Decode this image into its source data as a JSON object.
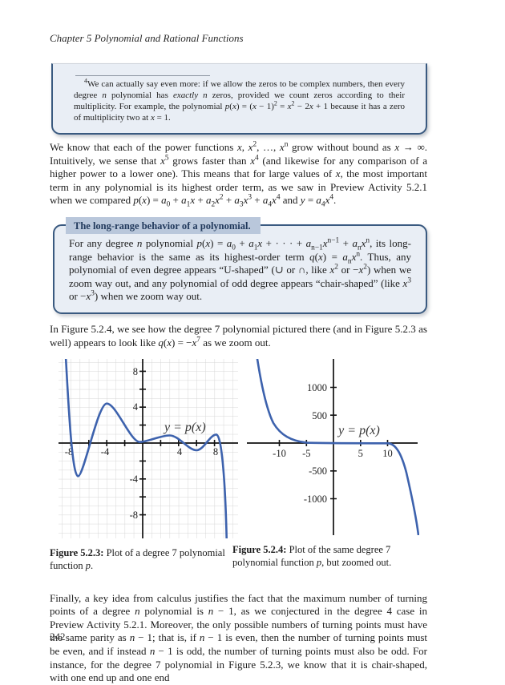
{
  "page": {
    "header": "Chapter 5 Polynomial and Rational Functions",
    "page_number": "242"
  },
  "footnote": {
    "marker": "4",
    "text_html": "We can actually say even more: if we allow the zeros to be complex numbers, then every degree <em>n</em> polynomial has <em>exactly n</em> zeros, provided we count zeros according to their multiplicity. For example, the polynomial <em>p</em>(<em>x</em>) = (<em>x</em> − 1)<sup>2</sup> = <em>x</em><sup>2</sup> − 2<em>x</em> + 1 because it has a zero of multiplicity two at <em>x</em> = 1."
  },
  "para1_html": "We know that each of the power functions <em>x</em>, <em>x</em><sup>2</sup>, …, <em>x</em><sup>n</sup> grow without bound as <em>x</em> → ∞. Intuitively, we sense that <em>x</em><sup>5</sup> grows faster than <em>x</em><sup>4</sup> (and likewise for any comparison of a higher power to a lower one). This means that for large values of <em>x</em>, the most important term in any polynomial is its highest order term, as we saw in Preview Activity 5.2.1 when we compared <em>p</em>(<em>x</em>) = <em>a</em><sub>0</sub> + <em>a</em><sub>1</sub><em>x</em> + <em>a</em><sub>2</sub><em>x</em><sup>2</sup> + <em>a</em><sub>3</sub><em>x</em><sup>3</sup> + <em>a</em><sub>4</sub><em>x</em><sup>4</sup> and <em>y</em> = <em>a</em><sub>4</sub><em>x</em><sup>4</sup>.",
  "behavior_box": {
    "title": "The long-range behavior of a polynomial.",
    "body_html": "For any degree <em>n</em> polynomial <em>p</em>(<em>x</em>) = <em>a</em><sub>0</sub> + <em>a</em><sub>1</sub><em>x</em> + · · · + <em>a</em><sub>n−1</sub><em>x</em><sup>n−1</sup> + <em>a</em><sub>n</sub><em>x</em><sup>n</sup>, its long-range behavior is the same as its highest-order term <em>q</em>(<em>x</em>) = <em>a</em><sub>n</sub><em>x</em><sup>n</sup>. Thus, any polynomial of even degree appears “U-shaped” (∪ or ∩, like <em>x</em><sup>2</sup> or −<em>x</em><sup>2</sup>) when we zoom way out, and any polynomial of odd degree appears “chair-shaped” (like <em>x</em><sup>3</sup> or −<em>x</em><sup>3</sup>) when we zoom way out.",
    "colors": {
      "border": "#3a5a80",
      "background": "#e9eef5",
      "title_background": "#b9c7db"
    }
  },
  "para2_html": "In Figure 5.2.4, we see how the degree 7 polynomial pictured there (and in Figure 5.2.3 as well) appears to look like <em>q</em>(<em>x</em>) = −<em>x</em><sup>7</sup> as we zoom out.",
  "para3_html": "Finally, a key idea from calculus justifies the fact that the maximum number of turning points of a degree <em>n</em> polynomial is <em>n</em> − 1, as we conjectured in the degree 4 case in Preview Activity 5.2.1. Moreover, the only possible numbers of turning points must have the same parity as <em>n</em> − 1; that is, if <em>n</em> − 1 is even, then the number of turning points must be even, and if instead <em>n</em> − 1 is odd, the number of turning points must also be odd. For instance, for the degree 7 polynomial in Figure 5.2.3, we know that it is chair-shaped, with one end up and one end",
  "figures": [
    {
      "caption_label": "Figure 5.2.3:",
      "caption_text_html": " Plot of a degree 7 polynomial function <em>p</em>.",
      "curve_label": "y = p(x)",
      "x_ticks": [
        "-8",
        "-4",
        "4",
        "8"
      ],
      "y_ticks": [
        "8",
        "4",
        "-4",
        "-8"
      ],
      "curve_color": "#3d62ad"
    },
    {
      "caption_label": "Figure 5.2.4:",
      "caption_text_html": " Plot of the same degree 7 polynomial function <em>p</em>, but zoomed out.",
      "curve_label": "y = p(x)",
      "x_ticks": [
        "-10",
        "-5",
        "5",
        "10"
      ],
      "y_ticks": [
        "1000",
        "500",
        "-500",
        "-1000"
      ],
      "curve_color": "#3d62ad"
    }
  ],
  "chart_data": [
    {
      "type": "line",
      "title": "Figure 5.2.3: degree 7 polynomial y = p(x), zoomed in",
      "series": [
        {
          "name": "y = p(x)",
          "points": [
            [
              -8.5,
              10
            ],
            [
              -8.1,
              0
            ],
            [
              -7.2,
              -3.7
            ],
            [
              -6.2,
              0
            ],
            [
              -4,
              4.4
            ],
            [
              -2,
              1.7
            ],
            [
              -0.3,
              0.1
            ],
            [
              0,
              0.2
            ],
            [
              3,
              0.9
            ],
            [
              4.6,
              0.3
            ],
            [
              6,
              -0.8
            ],
            [
              8.2,
              0.95
            ],
            [
              8.85,
              0
            ],
            [
              9.3,
              -10
            ]
          ]
        }
      ],
      "xlim": [
        -9.4,
        10.6
      ],
      "ylim": [
        -10.6,
        9.4
      ],
      "x_tick_labels": [
        -8,
        -4,
        4,
        8
      ],
      "y_tick_labels": [
        8,
        4,
        -4,
        -8
      ],
      "tick_step": 2,
      "grid": true,
      "annotation": "y = p(x)"
    },
    {
      "type": "line",
      "title": "Figure 5.2.4: same degree 7 polynomial, zoomed out (looks like -x^7)",
      "series": [
        {
          "name": "y = p(x)",
          "points": [
            [
              -14,
              1500
            ],
            [
              -11.5,
              400
            ],
            [
              -10,
              150
            ],
            [
              -9,
              40
            ],
            [
              -7.5,
              5
            ],
            [
              0,
              0
            ],
            [
              7.5,
              -5
            ],
            [
              9,
              -40
            ],
            [
              10,
              -150
            ],
            [
              11.5,
              -400
            ],
            [
              14,
              -1500
            ]
          ]
        }
      ],
      "xlim": [
        -16,
        15.5
      ],
      "ylim": [
        -1650,
        1500
      ],
      "x_tick_labels": [
        -10,
        -5,
        5,
        10
      ],
      "y_tick_labels": [
        1000,
        500,
        -500,
        -1000
      ],
      "grid": false,
      "annotation": "y = p(x)"
    }
  ]
}
